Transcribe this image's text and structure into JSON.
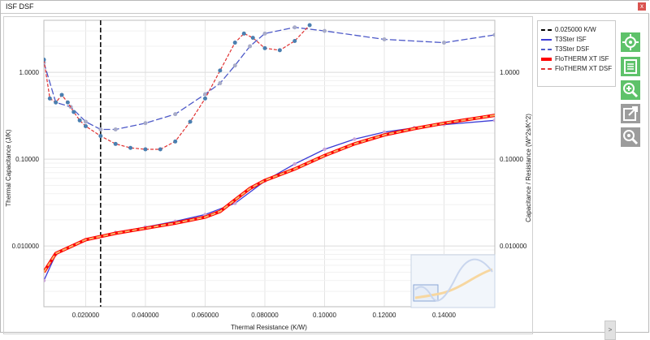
{
  "window": {
    "title": "ISF DSF",
    "close_label": "x"
  },
  "colors": {
    "isf_ref": "#3b3bd6",
    "dsf_ref": "#4d59c8",
    "flo_isf": "#ff0000",
    "flo_dsf": "#e03030",
    "marker_a": "#4a7fb0",
    "marker_b": "#a8acc8",
    "marker_c": "#f5b66a",
    "cursor": "#000000"
  },
  "toolbar": {
    "icons": [
      "locate-icon",
      "list-icon",
      "zoom-in-icon",
      "export-icon",
      "zoom-reset-icon"
    ],
    "expand_label": ">"
  },
  "chart_data": {
    "type": "line",
    "xlabel": "Thermal Resistance (K/W)",
    "ylabel_left": "Thermal Capacitance (J/K)",
    "ylabel_right": "Capacitance / Resistance (W^2s/K^2)",
    "xlim": [
      0.006,
      0.157
    ],
    "ylim_left_log10": [
      -2.7,
      0.6
    ],
    "y_scale": "log",
    "x_ticks": [
      "0.020000",
      "0.040000",
      "0.060000",
      "0.080000",
      "0.10000",
      "0.12000",
      "0.14000"
    ],
    "x_tick_values": [
      0.02,
      0.04,
      0.06,
      0.08,
      0.1,
      0.12,
      0.14
    ],
    "y_ticks_left": [
      "1.0000",
      "0.10000",
      "0.010000"
    ],
    "y_ticks_right": [
      "1.0000",
      "0.10000",
      "0.010000"
    ],
    "y_tick_values": [
      1.0,
      0.1,
      0.01
    ],
    "grid": true,
    "legend_position": "right",
    "cursor_x": 0.025,
    "series": [
      {
        "name": "0.025000 K/W",
        "style": "cursor"
      },
      {
        "name": "T3Ster ISF",
        "x": [
          0.006,
          0.01,
          0.02,
          0.03,
          0.04,
          0.05,
          0.06,
          0.07,
          0.08,
          0.09,
          0.1,
          0.11,
          0.12,
          0.13,
          0.14,
          0.157
        ],
        "y": [
          0.004,
          0.008,
          0.0118,
          0.0143,
          0.0165,
          0.0192,
          0.023,
          0.031,
          0.056,
          0.088,
          0.13,
          0.17,
          0.205,
          0.23,
          0.25,
          0.28
        ]
      },
      {
        "name": "T3Ster DSF",
        "x": [
          0.006,
          0.01,
          0.015,
          0.02,
          0.025,
          0.03,
          0.04,
          0.05,
          0.06,
          0.065,
          0.07,
          0.075,
          0.08,
          0.09,
          0.1,
          0.12,
          0.14,
          0.157
        ],
        "y": [
          1.3,
          0.45,
          0.4,
          0.27,
          0.22,
          0.22,
          0.26,
          0.33,
          0.56,
          0.75,
          1.2,
          2.0,
          2.8,
          3.3,
          3.0,
          2.4,
          2.2,
          2.7
        ]
      },
      {
        "name": "FloTHERM XT ISF",
        "x": [
          0.006,
          0.01,
          0.02,
          0.03,
          0.04,
          0.05,
          0.06,
          0.065,
          0.07,
          0.075,
          0.08,
          0.09,
          0.1,
          0.11,
          0.12,
          0.13,
          0.14,
          0.157
        ],
        "y": [
          0.005,
          0.0082,
          0.0118,
          0.014,
          0.016,
          0.0183,
          0.0215,
          0.025,
          0.034,
          0.046,
          0.057,
          0.077,
          0.11,
          0.15,
          0.19,
          0.225,
          0.26,
          0.32
        ]
      },
      {
        "name": "FloTHERM XT DSF",
        "x": [
          0.006,
          0.008,
          0.01,
          0.012,
          0.014,
          0.016,
          0.018,
          0.02,
          0.025,
          0.03,
          0.035,
          0.04,
          0.045,
          0.05,
          0.055,
          0.06,
          0.065,
          0.07,
          0.073,
          0.076,
          0.08,
          0.085,
          0.09,
          0.095
        ],
        "y": [
          1.4,
          0.5,
          0.45,
          0.55,
          0.45,
          0.35,
          0.28,
          0.24,
          0.185,
          0.15,
          0.135,
          0.13,
          0.13,
          0.16,
          0.27,
          0.5,
          1.05,
          2.2,
          2.8,
          2.5,
          1.9,
          1.8,
          2.3,
          3.5
        ]
      }
    ]
  }
}
